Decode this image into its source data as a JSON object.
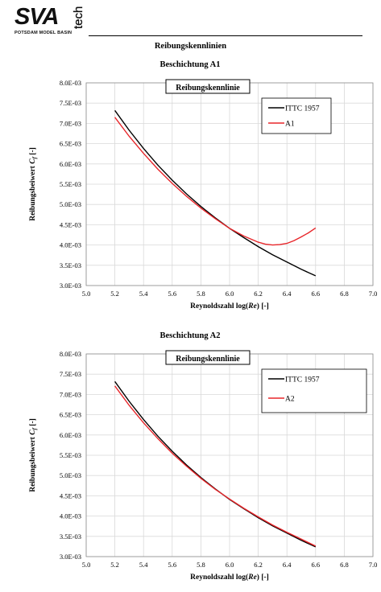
{
  "logo": {
    "brand": "SVA",
    "subtitle": "POTSDAM MODEL BASIN",
    "tag": "tech"
  },
  "page_title": "Reibungskennlinien",
  "charts": [
    {
      "title": "Beschichtung  A1",
      "inner_title": "Reibungskennlinie",
      "ylabel_main": "Reibungsbeiwert ",
      "ylabel_sym": "C",
      "ylabel_sub": "f",
      "ylabel_unit": " [-]",
      "xlabel_main": "Reynoldszahl log(",
      "xlabel_sym": "Re",
      "xlabel_unit": ") [-]",
      "yticks": [
        "3.0E-03",
        "3.5E-03",
        "4.0E-03",
        "4.5E-03",
        "5.0E-03",
        "5.5E-03",
        "6.0E-03",
        "6.5E-03",
        "7.0E-03",
        "7.5E-03",
        "8.0E-03"
      ],
      "xticks": [
        "5.0",
        "5.2",
        "5.4",
        "5.6",
        "5.8",
        "6.0",
        "6.2",
        "6.4",
        "6.6",
        "6.8",
        "7.0"
      ],
      "legend": [
        "ITTC 1957",
        "A1"
      ]
    },
    {
      "title": "Beschichtung  A2",
      "inner_title": "Reibungskennlinie",
      "ylabel_main": "Reibungsbeiwert ",
      "ylabel_sym": "C",
      "ylabel_sub": "f",
      "ylabel_unit": " [-]",
      "xlabel_main": "Reynoldszahl log(",
      "xlabel_sym": "Re",
      "xlabel_unit": ") [-]",
      "yticks": [
        "3.0E-03",
        "3.5E-03",
        "4.0E-03",
        "4.5E-03",
        "5.0E-03",
        "5.5E-03",
        "6.0E-03",
        "6.5E-03",
        "7.0E-03",
        "7.5E-03",
        "8.0E-03"
      ],
      "xticks": [
        "5.0",
        "5.2",
        "5.4",
        "5.6",
        "5.8",
        "6.0",
        "6.2",
        "6.4",
        "6.6",
        "6.8",
        "7.0"
      ],
      "legend": [
        "ITTC 1957",
        "A2"
      ]
    }
  ],
  "chart_data": [
    {
      "type": "line",
      "title": "Beschichtung  A1",
      "xlabel": "Reynoldszahl log(Re) [-]",
      "ylabel": "Reibungsbeiwert Cf [-]",
      "xlim": [
        5.0,
        7.0
      ],
      "ylim": [
        0.003,
        0.008
      ],
      "grid": true,
      "legend_position": "top-right",
      "colors": {
        "ITTC 1957": "#000000",
        "A1": "#e8262a"
      },
      "series": [
        {
          "name": "ITTC 1957",
          "x": [
            5.2,
            5.3,
            5.4,
            5.5,
            5.6,
            5.7,
            5.8,
            5.9,
            6.0,
            6.1,
            6.2,
            6.3,
            6.4,
            6.5,
            6.6
          ],
          "y": [
            0.00732,
            0.00683,
            0.00638,
            0.00597,
            0.0056,
            0.00526,
            0.00495,
            0.00467,
            0.00441,
            0.00418,
            0.00396,
            0.00376,
            0.00358,
            0.0034,
            0.00324
          ]
        },
        {
          "name": "A1",
          "x": [
            5.2,
            5.3,
            5.4,
            5.5,
            5.6,
            5.7,
            5.8,
            5.9,
            6.0,
            6.1,
            6.2,
            6.25,
            6.3,
            6.35,
            6.4,
            6.45,
            6.5,
            6.55,
            6.6
          ],
          "y": [
            0.00715,
            0.00668,
            0.00626,
            0.00587,
            0.00552,
            0.0052,
            0.00491,
            0.00465,
            0.00441,
            0.00422,
            0.00407,
            0.00402,
            0.004,
            0.00401,
            0.00404,
            0.00411,
            0.0042,
            0.0043,
            0.00442
          ]
        }
      ]
    },
    {
      "type": "line",
      "title": "Beschichtung  A2",
      "xlabel": "Reynoldszahl log(Re) [-]",
      "ylabel": "Reibungsbeiwert Cf [-]",
      "xlim": [
        5.0,
        7.0
      ],
      "ylim": [
        0.003,
        0.008
      ],
      "grid": true,
      "legend_position": "top-right",
      "colors": {
        "ITTC 1957": "#000000",
        "A2": "#e8262a"
      },
      "series": [
        {
          "name": "ITTC 1957",
          "x": [
            5.2,
            5.3,
            5.4,
            5.5,
            5.6,
            5.7,
            5.8,
            5.9,
            6.0,
            6.1,
            6.2,
            6.3,
            6.4,
            6.5,
            6.6
          ],
          "y": [
            0.00732,
            0.00683,
            0.00638,
            0.00597,
            0.0056,
            0.00526,
            0.00495,
            0.00467,
            0.00441,
            0.00418,
            0.00396,
            0.00376,
            0.00358,
            0.0034,
            0.00324
          ]
        },
        {
          "name": "A2",
          "x": [
            5.2,
            5.3,
            5.4,
            5.5,
            5.6,
            5.7,
            5.8,
            5.9,
            6.0,
            6.1,
            6.2,
            6.3,
            6.4,
            6.5,
            6.6
          ],
          "y": [
            0.00721,
            0.00673,
            0.0063,
            0.00591,
            0.00555,
            0.00523,
            0.00493,
            0.00466,
            0.00442,
            0.00419,
            0.00398,
            0.00378,
            0.0036,
            0.00343,
            0.00326
          ]
        }
      ]
    }
  ]
}
